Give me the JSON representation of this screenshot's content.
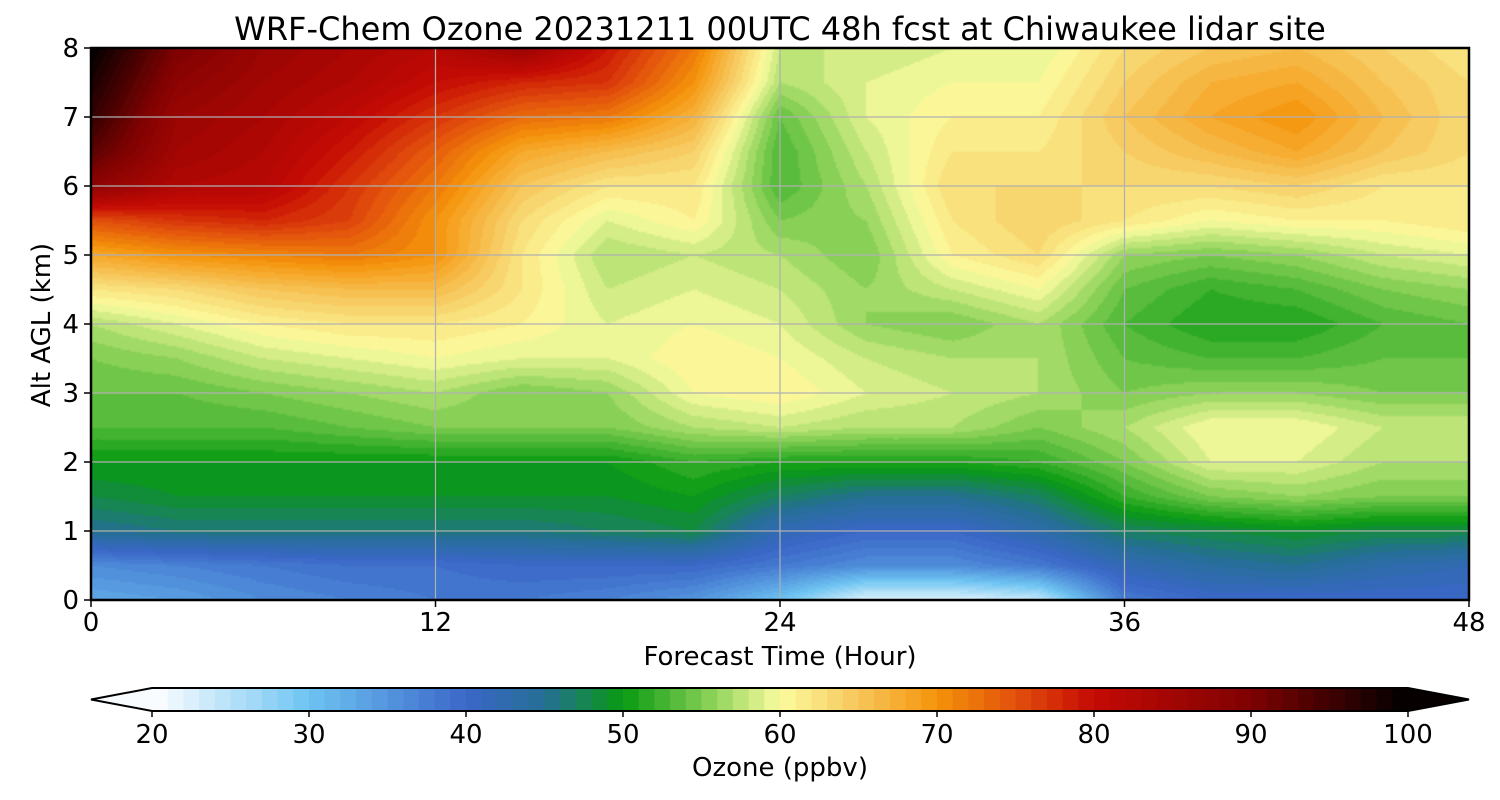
{
  "chart_data": {
    "type": "heatmap",
    "title": "WRF-Chem Ozone  20231211 00UTC 48h fcst at Chiwaukee lidar site",
    "xlabel": "Forecast Time (Hour)",
    "ylabel": "Alt AGL (km)",
    "xlim": [
      0,
      48
    ],
    "ylim": [
      0,
      8
    ],
    "x_ticks": [
      "0",
      "12",
      "24",
      "36",
      "48"
    ],
    "y_ticks": [
      "0",
      "1",
      "2",
      "3",
      "4",
      "5",
      "6",
      "7",
      "8"
    ],
    "grid": true,
    "x": [
      0,
      3,
      6,
      9,
      12,
      15,
      18,
      21,
      24,
      27,
      30,
      33,
      36,
      39,
      42,
      45,
      48
    ],
    "y": [
      0,
      0.5,
      1,
      1.5,
      2,
      2.5,
      3,
      3.5,
      4,
      4.5,
      5,
      5.5,
      6,
      6.5,
      7,
      7.5,
      8
    ],
    "z": [
      [
        33,
        34,
        36,
        37,
        38,
        38,
        37,
        35,
        30,
        22,
        22,
        24,
        38,
        40,
        40,
        40,
        40
      ],
      [
        36,
        37,
        38,
        39,
        39,
        40,
        40,
        40,
        38,
        36,
        36,
        38,
        42,
        44,
        45,
        43,
        42
      ],
      [
        45,
        46,
        46,
        46,
        46,
        46,
        47,
        48,
        42,
        40,
        40,
        43,
        47,
        48,
        49,
        48,
        48
      ],
      [
        48,
        49,
        49,
        49,
        49,
        49,
        49,
        50,
        47,
        45,
        45,
        47,
        52,
        55,
        56,
        55,
        55
      ],
      [
        50,
        50,
        50,
        50,
        50,
        50,
        50,
        52,
        51,
        51,
        51,
        52,
        55,
        59,
        59,
        57,
        57
      ],
      [
        53,
        53,
        53,
        54,
        55,
        55,
        55,
        57,
        58,
        57,
        57,
        55,
        57,
        60,
        60,
        58,
        58
      ],
      [
        54,
        54,
        55,
        56,
        57,
        55,
        56,
        60,
        61,
        59,
        58,
        57,
        55,
        56,
        56,
        55,
        55
      ],
      [
        55,
        56,
        58,
        59,
        60,
        59,
        59,
        61,
        60,
        58,
        57,
        57,
        54,
        53,
        53,
        54,
        54
      ],
      [
        57,
        59,
        61,
        62,
        62,
        61,
        59,
        60,
        59,
        56,
        55,
        57,
        53,
        51,
        51,
        53,
        54
      ],
      [
        62,
        63,
        65,
        66,
        66,
        62,
        58,
        59,
        58,
        56,
        58,
        60,
        54,
        52,
        53,
        55,
        56
      ],
      [
        68,
        70,
        71,
        72,
        70,
        62,
        57,
        58,
        57,
        55,
        61,
        63,
        56,
        55,
        56,
        58,
        59
      ],
      [
        75,
        77,
        78,
        76,
        70,
        63,
        59,
        61,
        55,
        56,
        62,
        64,
        62,
        60,
        61,
        61,
        62
      ],
      [
        88,
        83,
        82,
        77,
        72,
        65,
        62,
        62,
        53,
        57,
        63,
        63,
        63,
        63,
        64,
        62,
        62
      ],
      [
        93,
        85,
        83,
        79,
        74,
        68,
        66,
        64,
        53,
        58,
        62,
        62,
        64,
        66,
        68,
        65,
        63
      ],
      [
        96,
        86,
        84,
        81,
        77,
        73,
        72,
        67,
        54,
        59,
        61,
        61,
        65,
        68,
        70,
        66,
        63
      ],
      [
        98,
        88,
        85,
        83,
        80,
        78,
        77,
        70,
        57,
        59,
        60,
        60,
        64,
        67,
        68,
        65,
        63
      ],
      [
        100,
        90,
        86,
        84,
        82,
        86,
        79,
        72,
        58,
        58,
        59,
        59,
        63,
        65,
        66,
        64,
        62
      ]
    ],
    "colorbar": {
      "label": "Ozone  (ppbv)",
      "range": [
        20,
        100
      ],
      "ticks": [
        "20",
        "30",
        "40",
        "50",
        "60",
        "70",
        "80",
        "90",
        "100"
      ],
      "extend": "both",
      "levels": 80,
      "colors": [
        {
          "value": 20,
          "color": "#ffffff"
        },
        {
          "value": 30,
          "color": "#6ec4f2"
        },
        {
          "value": 40,
          "color": "#3a67c8"
        },
        {
          "value": 45,
          "color": "#256f95"
        },
        {
          "value": 50,
          "color": "#089a12"
        },
        {
          "value": 55,
          "color": "#7ccb4e"
        },
        {
          "value": 60,
          "color": "#fbfca0"
        },
        {
          "value": 65,
          "color": "#f7c65a"
        },
        {
          "value": 70,
          "color": "#f5930a"
        },
        {
          "value": 75,
          "color": "#e2500c"
        },
        {
          "value": 80,
          "color": "#c50a04"
        },
        {
          "value": 90,
          "color": "#7e0202"
        },
        {
          "value": 100,
          "color": "#000000"
        }
      ]
    }
  }
}
